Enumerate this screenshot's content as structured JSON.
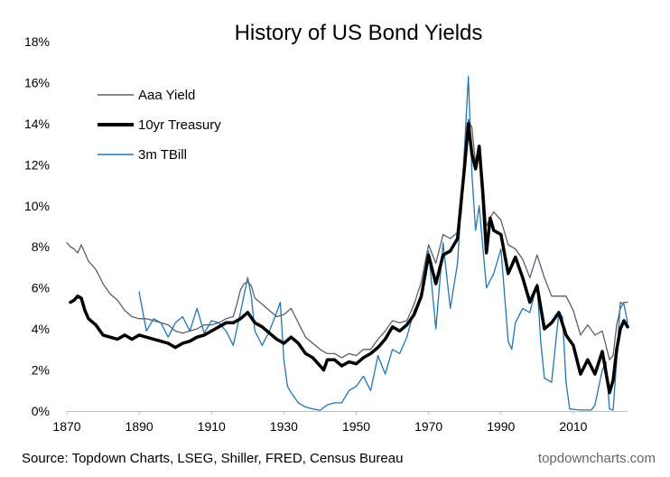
{
  "chart_data": {
    "type": "line",
    "title": "History of US Bond Yields",
    "xlabel": "",
    "ylabel": "",
    "xlim": [
      1870,
      2025
    ],
    "ylim": [
      0,
      18
    ],
    "x_ticks": [
      1870,
      1890,
      1910,
      1930,
      1950,
      1970,
      1990,
      2010
    ],
    "x_tick_labels": [
      "1870",
      "1890",
      "1910",
      "1930",
      "1950",
      "1970",
      "1990",
      "2010"
    ],
    "y_ticks": [
      0,
      2,
      4,
      6,
      8,
      10,
      12,
      14,
      16,
      18
    ],
    "y_tick_labels": [
      "0%",
      "2%",
      "4%",
      "6%",
      "8%",
      "10%",
      "12%",
      "14%",
      "16%",
      "18%"
    ],
    "grid": false,
    "legend_position": "top-left",
    "series": [
      {
        "name": "Aaa Yield",
        "color": "#5a5f6e",
        "style": "thin",
        "x": [
          1870,
          1871,
          1872,
          1873,
          1874,
          1876,
          1878,
          1880,
          1882,
          1884,
          1886,
          1888,
          1890,
          1892,
          1894,
          1896,
          1898,
          1900,
          1902,
          1904,
          1906,
          1908,
          1910,
          1912,
          1914,
          1916,
          1917,
          1918,
          1919,
          1920,
          1921,
          1922,
          1924,
          1926,
          1928,
          1930,
          1932,
          1934,
          1936,
          1938,
          1940,
          1942,
          1944,
          1946,
          1948,
          1950,
          1952,
          1954,
          1956,
          1958,
          1960,
          1962,
          1964,
          1966,
          1968,
          1970,
          1972,
          1974,
          1976,
          1978,
          1979,
          1980,
          1981,
          1982,
          1983,
          1984,
          1985,
          1986,
          1987,
          1988,
          1990,
          1992,
          1994,
          1996,
          1998,
          2000,
          2002,
          2004,
          2006,
          2008,
          2010,
          2012,
          2014,
          2016,
          2018,
          2020,
          2021,
          2022,
          2023,
          2024,
          2025
        ],
        "values": [
          8.2,
          8.0,
          7.9,
          7.7,
          8.1,
          7.3,
          6.9,
          6.2,
          5.7,
          5.4,
          4.9,
          4.6,
          4.5,
          4.5,
          4.4,
          4.3,
          4.2,
          3.9,
          3.8,
          3.9,
          4.0,
          4.2,
          4.2,
          4.3,
          4.5,
          4.6,
          5.2,
          5.9,
          6.2,
          6.3,
          6.1,
          5.5,
          5.2,
          4.9,
          4.6,
          4.7,
          5.0,
          4.3,
          3.6,
          3.3,
          3.0,
          2.8,
          2.8,
          2.6,
          2.8,
          2.7,
          3.0,
          3.0,
          3.5,
          3.9,
          4.4,
          4.3,
          4.4,
          5.2,
          6.3,
          8.1,
          7.2,
          8.6,
          8.4,
          8.7,
          9.6,
          11.9,
          14.2,
          13.8,
          12.0,
          12.7,
          11.3,
          9.0,
          9.4,
          9.7,
          9.3,
          8.1,
          7.9,
          7.4,
          6.5,
          7.6,
          6.5,
          5.6,
          5.6,
          5.6,
          4.9,
          3.7,
          4.2,
          3.7,
          3.9,
          2.5,
          2.7,
          4.2,
          5.0,
          5.3,
          5.3
        ]
      },
      {
        "name": "10yr Treasury",
        "color": "#000000",
        "style": "thick",
        "x": [
          1871,
          1872,
          1873,
          1874,
          1875,
          1876,
          1878,
          1880,
          1882,
          1884,
          1886,
          1888,
          1890,
          1892,
          1894,
          1896,
          1898,
          1900,
          1902,
          1904,
          1906,
          1908,
          1910,
          1912,
          1914,
          1916,
          1918,
          1920,
          1922,
          1924,
          1926,
          1928,
          1930,
          1932,
          1934,
          1936,
          1938,
          1940,
          1941,
          1942,
          1944,
          1946,
          1948,
          1950,
          1952,
          1954,
          1956,
          1958,
          1960,
          1962,
          1964,
          1966,
          1968,
          1970,
          1972,
          1974,
          1976,
          1978,
          1980,
          1981,
          1982,
          1983,
          1984,
          1985,
          1986,
          1987,
          1988,
          1990,
          1992,
          1994,
          1996,
          1998,
          2000,
          2002,
          2004,
          2006,
          2008,
          2010,
          2012,
          2014,
          2016,
          2018,
          2020,
          2021,
          2022,
          2023,
          2024,
          2025
        ],
        "values": [
          5.3,
          5.4,
          5.6,
          5.5,
          4.9,
          4.5,
          4.2,
          3.7,
          3.6,
          3.5,
          3.7,
          3.5,
          3.7,
          3.6,
          3.5,
          3.4,
          3.3,
          3.1,
          3.3,
          3.4,
          3.6,
          3.7,
          3.9,
          4.1,
          4.3,
          4.3,
          4.5,
          4.8,
          4.3,
          4.1,
          3.8,
          3.5,
          3.3,
          3.6,
          3.3,
          2.8,
          2.6,
          2.2,
          2.0,
          2.5,
          2.5,
          2.2,
          2.4,
          2.3,
          2.6,
          2.8,
          3.1,
          3.5,
          4.1,
          3.9,
          4.2,
          4.7,
          5.6,
          7.6,
          6.2,
          7.6,
          7.8,
          8.4,
          12.0,
          14.0,
          12.5,
          11.8,
          12.9,
          10.6,
          7.7,
          9.4,
          8.8,
          8.6,
          6.7,
          7.5,
          6.5,
          5.3,
          6.1,
          4.0,
          4.3,
          4.8,
          3.7,
          3.2,
          1.8,
          2.5,
          1.8,
          2.9,
          0.9,
          1.5,
          3.0,
          4.0,
          4.4,
          4.1
        ]
      },
      {
        "name": "3m TBill",
        "color": "#1f77b4",
        "style": "thin",
        "x": [
          1890,
          1892,
          1894,
          1896,
          1898,
          1900,
          1902,
          1904,
          1906,
          1908,
          1910,
          1912,
          1914,
          1916,
          1918,
          1920,
          1921,
          1922,
          1924,
          1926,
          1928,
          1929,
          1930,
          1931,
          1932,
          1934,
          1936,
          1938,
          1940,
          1942,
          1944,
          1946,
          1948,
          1950,
          1952,
          1954,
          1956,
          1958,
          1960,
          1962,
          1964,
          1966,
          1968,
          1970,
          1972,
          1974,
          1976,
          1978,
          1980,
          1981,
          1982,
          1983,
          1984,
          1986,
          1988,
          1990,
          1992,
          1993,
          1994,
          1996,
          1998,
          2000,
          2001,
          2002,
          2004,
          2006,
          2007,
          2008,
          2009,
          2012,
          2015,
          2016,
          2018,
          2019,
          2020,
          2021,
          2022,
          2023,
          2024,
          2025
        ],
        "values": [
          5.8,
          3.9,
          4.5,
          4.3,
          3.6,
          4.3,
          4.6,
          3.9,
          5.0,
          3.8,
          4.4,
          4.3,
          3.9,
          3.2,
          4.8,
          6.5,
          5.6,
          3.9,
          3.2,
          3.9,
          4.8,
          5.3,
          2.5,
          1.2,
          0.9,
          0.4,
          0.2,
          0.1,
          0.04,
          0.3,
          0.4,
          0.4,
          1.0,
          1.2,
          1.7,
          1.0,
          2.7,
          1.8,
          3.0,
          2.8,
          3.6,
          4.9,
          5.5,
          7.8,
          4.0,
          8.2,
          5.0,
          7.2,
          13.0,
          16.3,
          11.5,
          8.8,
          10.0,
          6.0,
          6.7,
          7.9,
          3.4,
          3.0,
          4.3,
          5.0,
          4.8,
          6.2,
          3.4,
          1.6,
          1.4,
          4.8,
          4.6,
          1.4,
          0.1,
          0.05,
          0.05,
          0.3,
          2.0,
          2.4,
          0.1,
          0.05,
          2.5,
          5.3,
          5.2,
          4.3
        ]
      }
    ]
  },
  "footer": {
    "source": "Source: Topdown Charts, LSEG, Shiller, FRED, Census Bureau",
    "brand": "topdowncharts.com"
  }
}
